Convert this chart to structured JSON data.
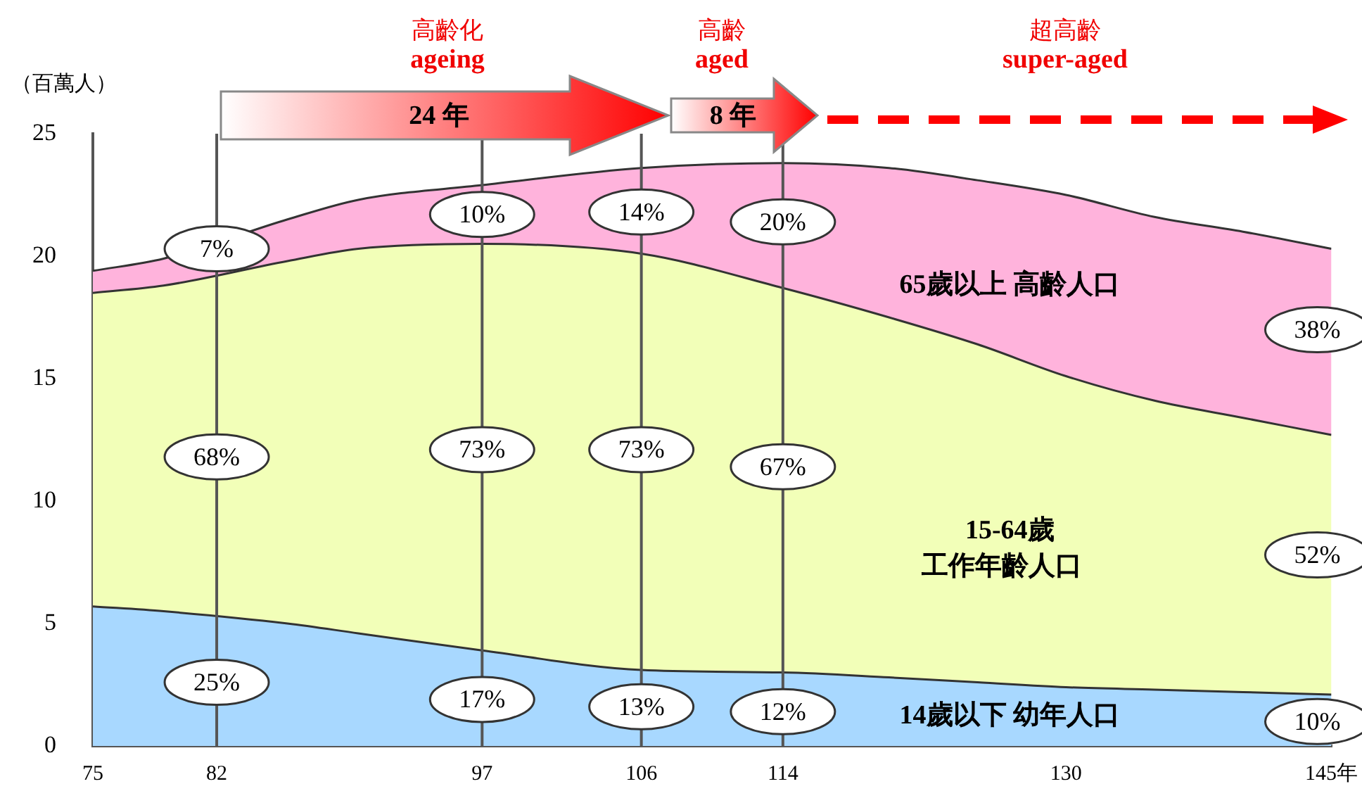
{
  "chart_data": {
    "type": "area",
    "stacked": true,
    "ylabel": "（百萬人）",
    "x": [
      75,
      79,
      86,
      90,
      97,
      106,
      114,
      120,
      125,
      130,
      135,
      140,
      145
    ],
    "xlim": [
      75,
      145
    ],
    "xticks": [
      75,
      82,
      97,
      106,
      114,
      130,
      {
        "value": 145,
        "label": "145年"
      }
    ],
    "ylim": [
      0,
      25
    ],
    "yticks": [
      0,
      5,
      10,
      15,
      20,
      25
    ],
    "grid": false,
    "legend": false,
    "series": [
      {
        "name": "14歲以下 幼年人口",
        "color": "#a8d8ff",
        "values": [
          5.7,
          5.5,
          5.0,
          4.6,
          3.9,
          3.1,
          3.0,
          2.8,
          2.6,
          2.4,
          2.3,
          2.2,
          2.1
        ]
      },
      {
        "name": "15-64歲",
        "color": "#f2ffb8",
        "values": [
          12.8,
          13.3,
          14.8,
          15.7,
          16.6,
          17.0,
          15.7,
          14.7,
          13.8,
          12.7,
          11.8,
          11.2,
          10.6
        ]
      },
      {
        "name": "65歲以上 高齡人口",
        "color": "#ffb3dc",
        "values": [
          0.9,
          1.1,
          1.7,
          2.0,
          2.4,
          3.5,
          5.1,
          6.1,
          6.7,
          7.4,
          7.5,
          7.6,
          7.6
        ]
      }
    ],
    "ref_lines": [
      {
        "axis": "x",
        "value": 82
      },
      {
        "axis": "x",
        "value": 97
      },
      {
        "axis": "x",
        "value": 106
      },
      {
        "axis": "x",
        "value": 114
      }
    ],
    "annotations": [
      "高齡化",
      "ageing",
      "24 年",
      "高齡",
      "aged",
      "8 年",
      "超高齡",
      "super-aged",
      "工作年齡人口",
      {
        "text": "7%",
        "x": 82,
        "y": 20.3
      },
      {
        "text": "68%",
        "x": 82,
        "y": 11.8
      },
      {
        "text": "25%",
        "x": 82,
        "y": 2.6
      },
      {
        "text": "10%",
        "x": 97,
        "y": 21.7
      },
      {
        "text": "73%",
        "x": 97,
        "y": 12.1
      },
      {
        "text": "17%",
        "x": 97,
        "y": 1.9
      },
      {
        "text": "14%",
        "x": 106,
        "y": 21.8
      },
      {
        "text": "73%",
        "x": 106,
        "y": 12.1
      },
      {
        "text": "13%",
        "x": 106,
        "y": 1.6
      },
      {
        "text": "20%",
        "x": 114,
        "y": 21.4
      },
      {
        "text": "67%",
        "x": 114,
        "y": 11.4
      },
      {
        "text": "12%",
        "x": 114,
        "y": 1.4
      },
      {
        "text": "38%",
        "x": 145,
        "y": 17.0
      },
      {
        "text": "52%",
        "x": 145,
        "y": 7.8
      },
      {
        "text": "10%",
        "x": 145,
        "y": 1.0
      }
    ]
  }
}
